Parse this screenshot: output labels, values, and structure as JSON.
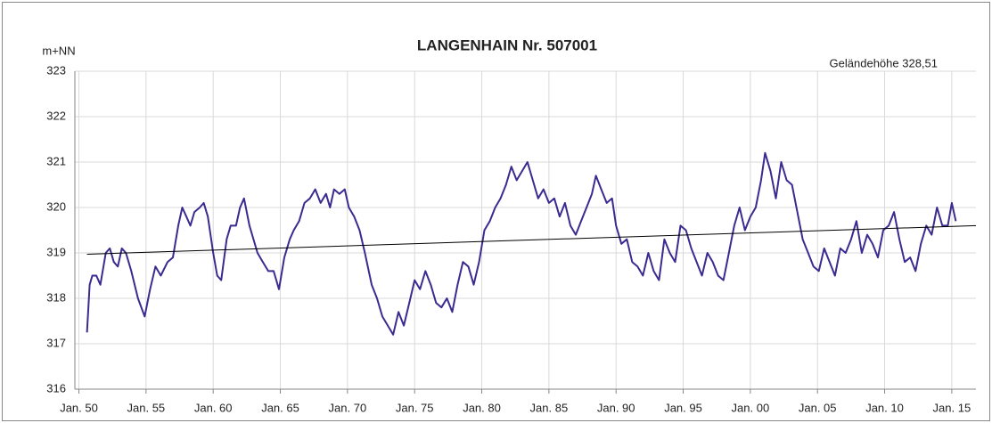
{
  "chart_data": {
    "type": "line",
    "title": "LANGENHAIN  Nr. 507001",
    "y_label": "m+NN",
    "annotation": "Geländehöhe 328,51",
    "annotation_color": "#339933",
    "grid": true,
    "xlim": [
      1949.7,
      2016.8
    ],
    "ylim": [
      316,
      323
    ],
    "yticks": [
      316,
      317,
      318,
      319,
      320,
      321,
      322,
      323
    ],
    "xticks": [
      {
        "value": 1950,
        "label": "Jan. 50"
      },
      {
        "value": 1955,
        "label": "Jan. 55"
      },
      {
        "value": 1960,
        "label": "Jan. 60"
      },
      {
        "value": 1965,
        "label": "Jan. 65"
      },
      {
        "value": 1970,
        "label": "Jan. 70"
      },
      {
        "value": 1975,
        "label": "Jan. 75"
      },
      {
        "value": 1980,
        "label": "Jan. 80"
      },
      {
        "value": 1985,
        "label": "Jan. 85"
      },
      {
        "value": 1990,
        "label": "Jan. 90"
      },
      {
        "value": 1995,
        "label": "Jan. 95"
      },
      {
        "value": 2000,
        "label": "Jan. 00"
      },
      {
        "value": 2005,
        "label": "Jan. 05"
      },
      {
        "value": 2010,
        "label": "Jan. 10"
      },
      {
        "value": 2015,
        "label": "Jan. 15"
      }
    ],
    "series": [
      {
        "color": "#3b2a8f",
        "x": [
          1950.6,
          1950.8,
          1951.0,
          1951.3,
          1951.6,
          1952.0,
          1952.3,
          1952.6,
          1952.9,
          1953.2,
          1953.5,
          1953.9,
          1954.4,
          1954.9,
          1955.3,
          1955.7,
          1956.1,
          1956.6,
          1957.0,
          1957.4,
          1957.7,
          1958.0,
          1958.3,
          1958.6,
          1959.0,
          1959.3,
          1959.6,
          1960.0,
          1960.3,
          1960.6,
          1961.0,
          1961.3,
          1961.7,
          1962.0,
          1962.3,
          1962.7,
          1963.0,
          1963.3,
          1963.7,
          1964.1,
          1964.5,
          1964.9,
          1965.3,
          1965.7,
          1966.0,
          1966.4,
          1966.8,
          1967.2,
          1967.6,
          1968.0,
          1968.4,
          1968.7,
          1969.0,
          1969.4,
          1969.8,
          1970.1,
          1970.5,
          1970.9,
          1971.3,
          1971.8,
          1972.2,
          1972.6,
          1973.0,
          1973.4,
          1973.8,
          1974.2,
          1974.6,
          1975.0,
          1975.4,
          1975.8,
          1976.2,
          1976.6,
          1977.0,
          1977.4,
          1977.8,
          1978.2,
          1978.6,
          1979.0,
          1979.4,
          1979.8,
          1980.2,
          1980.6,
          1981.0,
          1981.4,
          1981.8,
          1982.2,
          1982.6,
          1983.0,
          1983.4,
          1983.8,
          1984.2,
          1984.6,
          1985.0,
          1985.4,
          1985.8,
          1986.2,
          1986.6,
          1987.0,
          1987.4,
          1987.8,
          1988.2,
          1988.5,
          1988.9,
          1989.3,
          1989.7,
          1990.0,
          1990.4,
          1990.8,
          1991.2,
          1991.6,
          1992.0,
          1992.4,
          1992.8,
          1993.2,
          1993.6,
          1994.0,
          1994.4,
          1994.8,
          1995.2,
          1995.6,
          1996.0,
          1996.4,
          1996.8,
          1997.2,
          1997.6,
          1998.0,
          1998.4,
          1998.8,
          1999.2,
          1999.6,
          2000.0,
          2000.4,
          2000.8,
          2001.1,
          2001.5,
          2001.9,
          2002.3,
          2002.7,
          2003.1,
          2003.5,
          2003.9,
          2004.3,
          2004.7,
          2005.1,
          2005.5,
          2005.9,
          2006.3,
          2006.7,
          2007.1,
          2007.5,
          2007.9,
          2008.3,
          2008.7,
          2009.1,
          2009.5,
          2009.9,
          2010.3,
          2010.7,
          2011.1,
          2011.5,
          2011.9,
          2012.3,
          2012.7,
          2013.1,
          2013.5,
          2013.9,
          2014.3,
          2014.7,
          2015.0,
          2015.3
        ],
        "values": [
          317.25,
          318.3,
          318.5,
          318.5,
          318.3,
          319.0,
          319.1,
          318.8,
          318.7,
          319.1,
          319.0,
          318.6,
          318.0,
          317.6,
          318.2,
          318.7,
          318.5,
          318.8,
          318.9,
          319.6,
          320.0,
          319.8,
          319.6,
          319.9,
          320.0,
          320.1,
          319.8,
          319.0,
          318.5,
          318.4,
          319.3,
          319.6,
          319.6,
          320.0,
          320.2,
          319.6,
          319.3,
          319.0,
          318.8,
          318.6,
          318.6,
          318.2,
          318.9,
          319.3,
          319.5,
          319.7,
          320.1,
          320.2,
          320.4,
          320.1,
          320.3,
          320.0,
          320.4,
          320.3,
          320.4,
          320.0,
          319.8,
          319.5,
          319.0,
          318.3,
          318.0,
          317.6,
          317.4,
          317.2,
          317.7,
          317.4,
          317.9,
          318.4,
          318.2,
          318.6,
          318.3,
          317.9,
          317.8,
          318.0,
          317.7,
          318.3,
          318.8,
          318.7,
          318.3,
          318.8,
          319.5,
          319.7,
          320.0,
          320.2,
          320.5,
          320.9,
          320.6,
          320.8,
          321.0,
          320.6,
          320.2,
          320.4,
          320.1,
          320.2,
          319.8,
          320.1,
          319.6,
          319.4,
          319.7,
          320.0,
          320.3,
          320.7,
          320.4,
          320.1,
          320.2,
          319.6,
          319.2,
          319.3,
          318.8,
          318.7,
          318.5,
          319.0,
          318.6,
          318.4,
          319.3,
          319.0,
          318.8,
          319.6,
          319.5,
          319.1,
          318.8,
          318.5,
          319.0,
          318.8,
          318.5,
          318.4,
          319.0,
          319.6,
          320.0,
          319.5,
          319.8,
          320.0,
          320.6,
          321.2,
          320.8,
          320.2,
          321.0,
          320.6,
          320.5,
          319.9,
          319.3,
          319.0,
          318.7,
          318.6,
          319.1,
          318.8,
          318.5,
          319.1,
          319.0,
          319.3,
          319.7,
          319.0,
          319.4,
          319.2,
          318.9,
          319.5,
          319.6,
          319.9,
          319.3,
          318.8,
          318.9,
          318.6,
          319.2,
          319.6,
          319.4,
          320.0,
          319.6,
          319.6,
          320.1,
          319.7
        ]
      }
    ],
    "trend": {
      "color": "#000000",
      "x": [
        1950.6,
        2016.8
      ],
      "values": [
        318.97,
        319.6
      ]
    }
  }
}
